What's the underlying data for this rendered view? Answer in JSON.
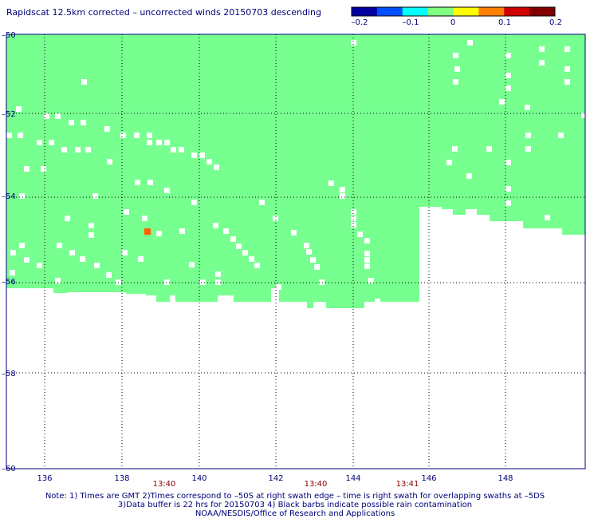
{
  "title": "Rapidscat 12.5km corrected – uncorrected winds 20150703 descending",
  "colorbar": {
    "labels": [
      "–0.2",
      "–0.1",
      "0",
      "0.1",
      "0.2"
    ],
    "colors": [
      "#0000a0",
      "#0050ff",
      "#00ffff",
      "#80ff80",
      "#ffff00",
      "#ff7f00",
      "#d00000",
      "#800000"
    ]
  },
  "map": {
    "lat_labels": [
      "–50",
      "–52",
      "–54",
      "–56",
      "–58",
      "–60"
    ],
    "lon_labels": [
      "136",
      "138",
      "140",
      "142",
      "144",
      "146",
      "148"
    ],
    "time_labels": [
      "13:40",
      "13:40",
      "13:41"
    ],
    "fill_color": "#77ff90",
    "missing_color": "#ffffff",
    "flag_color": "#ff6000",
    "time_color": "#8b0000",
    "axis_color": "#000080"
  },
  "notes": {
    "line1": "Note: 1) Times are GMT 2)Times correspond to –50S at right swath edge – time is right swath for overlapping swaths at –5DS",
    "line2": "3)Data buffer is 22 hrs for 20150703 4) Black barbs indicate possible rain contamination",
    "line3": "NOAA/NESDIS/Office of Research and Applications"
  }
}
